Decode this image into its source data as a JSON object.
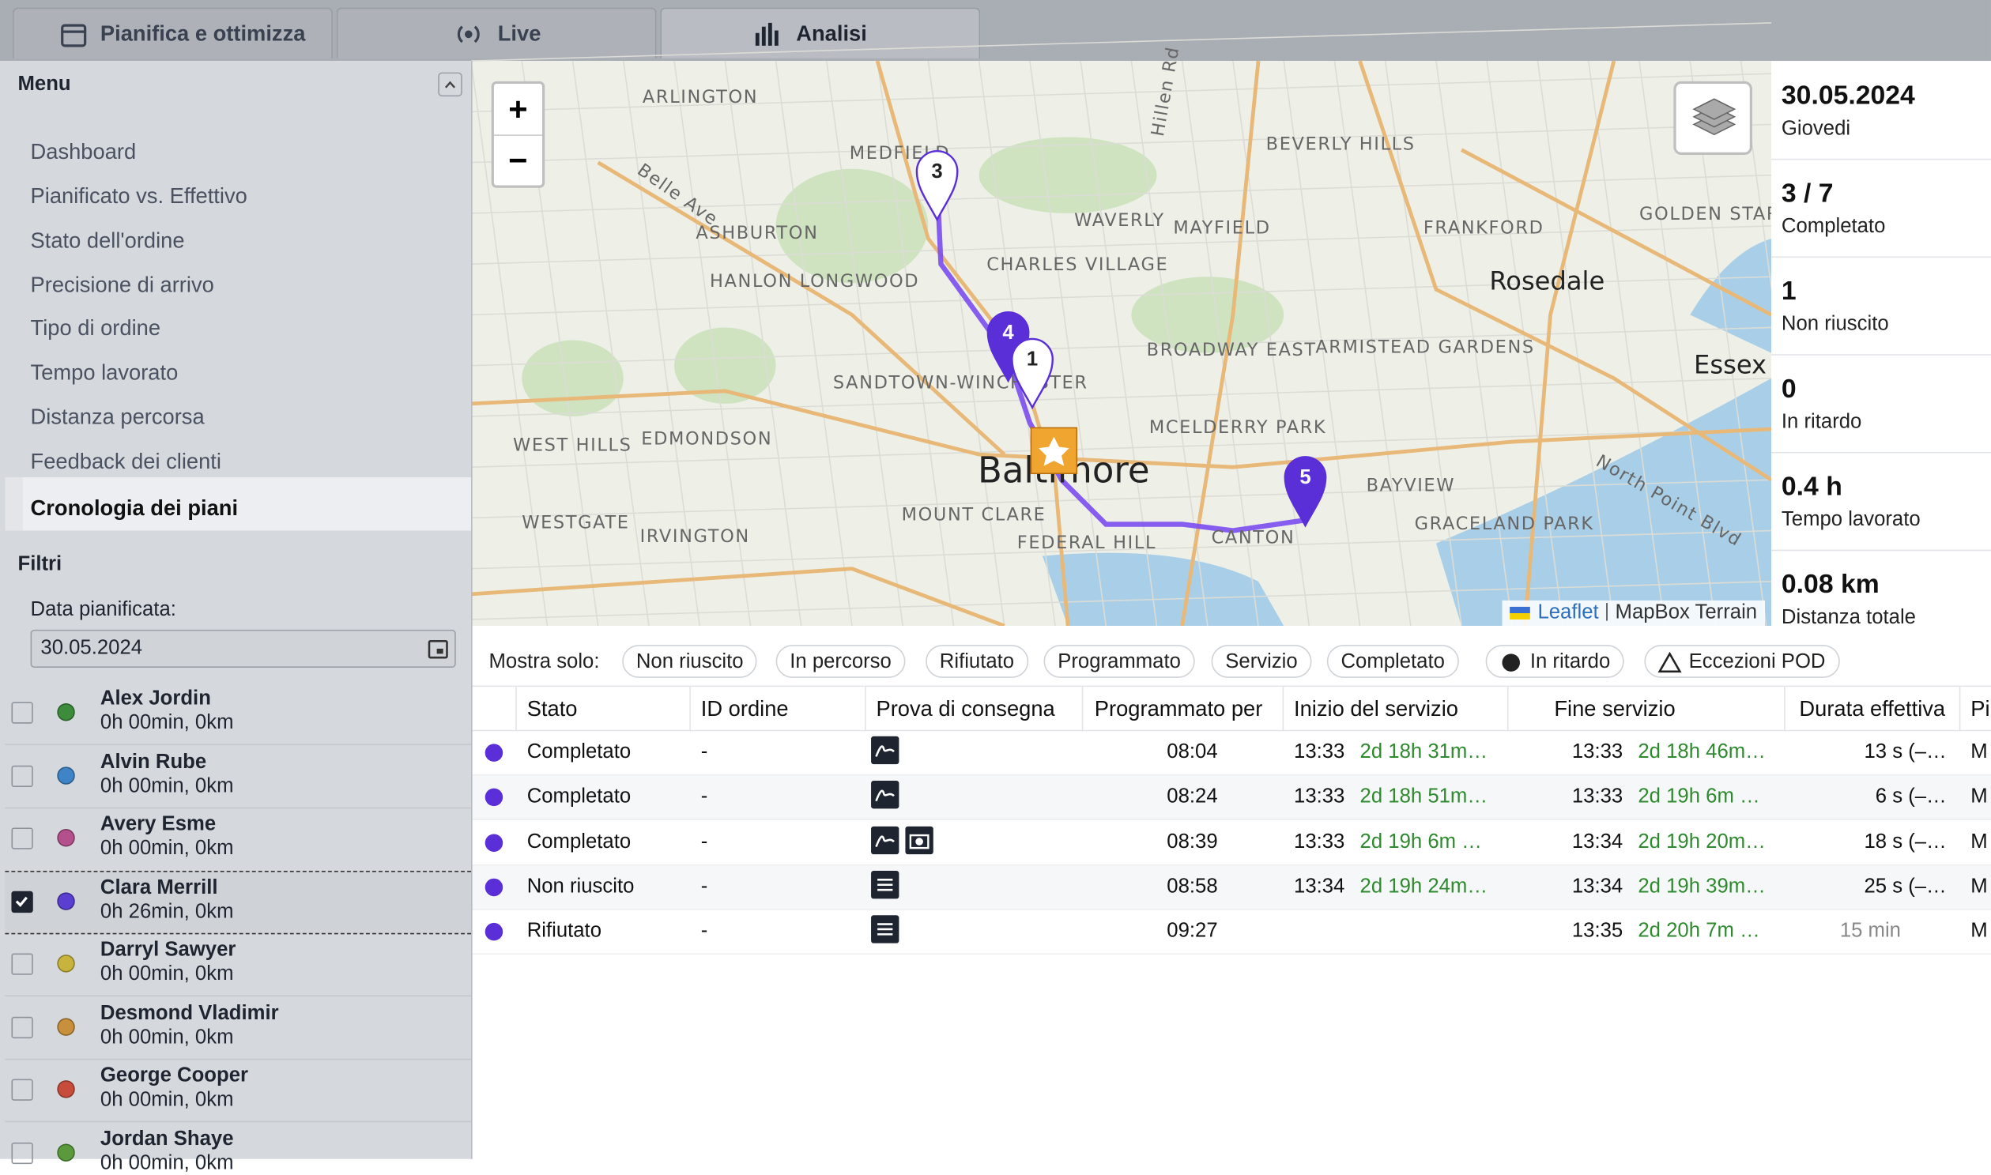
{
  "tabs": [
    "Pianifica e ottimizza",
    "Live",
    "Analisi"
  ],
  "menu": {
    "title": "Menu",
    "items": [
      "Dashboard",
      "Pianificato vs. Effettivo",
      "Stato dell'ordine",
      "Precisione di arrivo",
      "Tipo di ordine",
      "Tempo lavorato",
      "Distanza percorsa",
      "Feedback dei clienti",
      "Cronologia dei piani"
    ]
  },
  "filters": {
    "title": "Filtri",
    "date_label": "Data pianificata:",
    "date": "30.05.2024"
  },
  "drivers": [
    {
      "name": "Alex Jordin",
      "summary": "0h 00min, 0km",
      "color": "#3c8c3c",
      "checked": false
    },
    {
      "name": "Alvin Rube",
      "summary": "0h 00min, 0km",
      "color": "#3f84c6",
      "checked": false
    },
    {
      "name": "Avery Esme",
      "summary": "0h 00min, 0km",
      "color": "#b4508c",
      "checked": false
    },
    {
      "name": "Clara Merrill",
      "summary": "0h 26min, 0km",
      "color": "#5b3fd0",
      "checked": true
    },
    {
      "name": "Darryl Sawyer",
      "summary": "0h 00min, 0km",
      "color": "#c8b43c",
      "checked": false
    },
    {
      "name": "Desmond Vladimir",
      "summary": "0h 00min, 0km",
      "color": "#c8903c",
      "checked": false
    },
    {
      "name": "George Cooper",
      "summary": "0h 00min, 0km",
      "color": "#c84c3c",
      "checked": false
    },
    {
      "name": "Jordan Shaye",
      "summary": "0h 00min, 0km",
      "color": "#5a9a3c",
      "checked": false
    }
  ],
  "map": {
    "zoom_in": "+",
    "zoom_out": "−",
    "labels": [
      "ARLINGTON",
      "MEDFIELD",
      "ASHBURTON",
      "HANLON LONGWOOD",
      "CHARLES VILLAGE",
      "WAVERLY",
      "MAYFIELD",
      "BEVERLY HILLS",
      "FRANKFORD",
      "Rosedale",
      "Essex",
      "BROADWAY EAST",
      "ARMISTEAD GARDENS",
      "SANDTOWN-WINCHESTER",
      "WEST HILLS",
      "EDMONDSON",
      "MCELDERRY PARK",
      "Baltimore",
      "BAYVIEW",
      "WESTGATE",
      "IRVINGTON",
      "MOUNT CLARE",
      "FEDERAL HILL",
      "CANTON",
      "GRACELAND PARK",
      "North Point Blvd",
      "Belle Ave",
      "Hillen Rd",
      "GOLDEN STAR"
    ],
    "markers": [
      "3",
      "4",
      "1",
      "5"
    ],
    "attribution": [
      "Leaflet",
      "MapBox Terrain"
    ]
  },
  "stats": [
    {
      "value": "30.05.2024",
      "label": "Giovedi"
    },
    {
      "value": "3 / 7",
      "label": "Completato"
    },
    {
      "value": "1",
      "label": "Non riuscito"
    },
    {
      "value": "0",
      "label": "In ritardo"
    },
    {
      "value": "0.4 h",
      "label": "Tempo lavorato"
    },
    {
      "value": "0.08 km",
      "label": "Distanza totale"
    }
  ],
  "show_only": {
    "label": "Mostra solo:",
    "chips": [
      "Non riuscito",
      "In percorso",
      "Rifiutato",
      "Programmato",
      "Servizio",
      "Completato",
      "In ritardo",
      "Eccezioni POD"
    ]
  },
  "table": {
    "headers": [
      "Stato",
      "ID ordine",
      "Prova di consegna",
      "Programmato per",
      "Inizio del servizio",
      "Fine servizio",
      "Durata effettiva",
      "Pi"
    ],
    "rows": [
      {
        "status": "Completato",
        "order_id": "-",
        "scheduled": "08:04",
        "start": "13:33",
        "start_delta": "2d 18h 31m…",
        "end": "13:33",
        "end_delta": "2d 18h 46m…",
        "duration": "13 s (–…",
        "last": "M"
      },
      {
        "status": "Completato",
        "order_id": "-",
        "scheduled": "08:24",
        "start": "13:33",
        "start_delta": "2d 18h 51m…",
        "end": "13:33",
        "end_delta": "2d 19h 6m …",
        "duration": "6 s (–…",
        "last": "M"
      },
      {
        "status": "Completato",
        "order_id": "-",
        "scheduled": "08:39",
        "start": "13:33",
        "start_delta": "2d 19h 6m …",
        "end": "13:34",
        "end_delta": "2d 19h 20m…",
        "duration": "18 s (–…",
        "last": "M"
      },
      {
        "status": "Non riuscito",
        "order_id": "-",
        "scheduled": "08:58",
        "start": "13:34",
        "start_delta": "2d 19h 24m…",
        "end": "13:34",
        "end_delta": "2d 19h 39m…",
        "duration": "25 s (–…",
        "last": "M"
      },
      {
        "status": "Rifiutato",
        "order_id": "-",
        "scheduled": "09:27",
        "start": "",
        "start_delta": "",
        "end": "13:35",
        "end_delta": "2d 20h 7m …",
        "duration": "15 min",
        "last": "M"
      }
    ]
  }
}
